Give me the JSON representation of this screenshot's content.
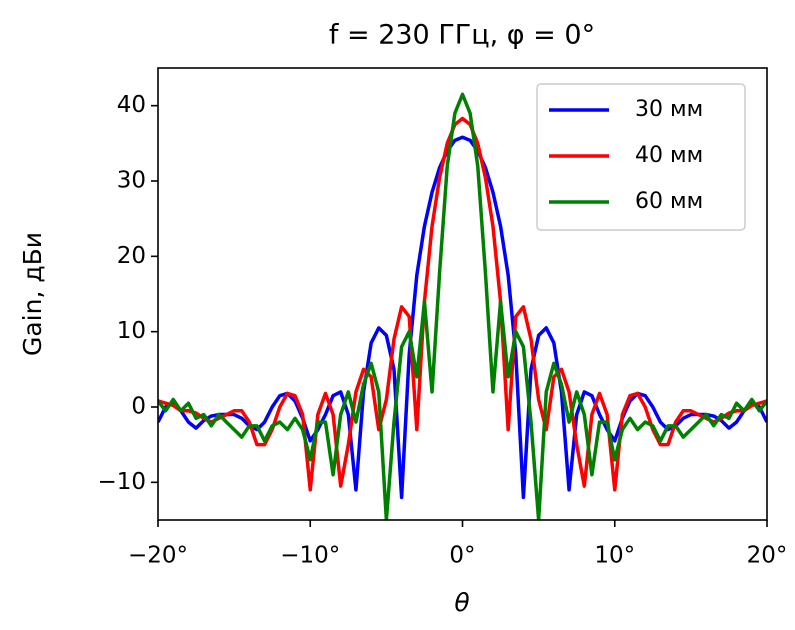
{
  "chart_data": {
    "type": "line",
    "title": "f = 230 ГГц, φ = 0°",
    "x_label": "θ",
    "y_label": "Gain, дБи",
    "x": [
      -20,
      -19.5,
      -19,
      -18.5,
      -18,
      -17.5,
      -17,
      -16.5,
      -16,
      -15.5,
      -15,
      -14.5,
      -14,
      -13.5,
      -13,
      -12.5,
      -12,
      -11.5,
      -11,
      -10.5,
      -10,
      -9.5,
      -9,
      -8.5,
      -8,
      -7.5,
      -7,
      -6.5,
      -6,
      -5.5,
      -5,
      -4.5,
      -4,
      -3.5,
      -3,
      -2.5,
      -2,
      -1.5,
      -1,
      -0.5,
      0,
      0.5,
      1,
      1.5,
      2,
      2.5,
      3,
      3.5,
      4,
      4.5,
      5,
      5.5,
      6,
      6.5,
      7,
      7.5,
      8,
      8.5,
      9,
      9.5,
      10,
      10.5,
      11,
      11.5,
      12,
      12.5,
      13,
      13.5,
      14,
      14.5,
      15,
      15.5,
      16,
      16.5,
      17,
      17.5,
      18,
      18.5,
      19,
      19.5,
      20
    ],
    "series": [
      {
        "name": "30 мм",
        "color": "#0000ff",
        "values": [
          -2,
          0,
          0.5,
          -0.5,
          -2,
          -2.8,
          -1.8,
          -1.2,
          -1,
          -1,
          -1,
          -1.5,
          -2.5,
          -3,
          -2,
          0,
          1.5,
          1.8,
          0.8,
          -1.5,
          -4.5,
          -3,
          -1,
          1.5,
          2,
          -1,
          -11,
          2,
          8.5,
          10.5,
          9.5,
          5,
          -12,
          7,
          17.5,
          24,
          28.5,
          31.8,
          34,
          35.4,
          35.8,
          35.4,
          34,
          31.8,
          28.5,
          24,
          17.5,
          7,
          -12,
          5,
          9.5,
          10.5,
          8.5,
          2,
          -11,
          -1,
          2,
          1.5,
          -1,
          -3,
          -4.5,
          -1.5,
          0.8,
          1.8,
          1.5,
          0,
          -2,
          -3,
          -2.5,
          -1.5,
          -1,
          -1,
          -1,
          -1.2,
          -1.8,
          -2.8,
          -2,
          -0.5,
          0.5,
          0,
          -2
        ]
      },
      {
        "name": "40 мм",
        "color": "#ff0000",
        "values": [
          0.8,
          0.5,
          0.2,
          -0.5,
          -0.5,
          -0.8,
          -1.5,
          -2,
          -1.5,
          -1,
          -0.5,
          -0.5,
          -2,
          -5,
          -5,
          -3,
          0,
          1.8,
          1.5,
          -1,
          -11,
          -1,
          1.8,
          -1,
          -10.5,
          -5,
          2,
          5,
          4,
          -3,
          1,
          9,
          13.3,
          12,
          -3,
          14,
          24,
          30.5,
          35,
          37.5,
          38.3,
          37.5,
          35,
          30.5,
          24,
          14,
          -3,
          12,
          13.3,
          9,
          1,
          -3,
          4,
          5,
          2,
          -5,
          -10.5,
          -1,
          1.8,
          -1,
          -11,
          -1,
          1.5,
          1.8,
          0,
          -3,
          -5,
          -5,
          -2,
          -0.5,
          -0.5,
          -1,
          -1.5,
          -2,
          -1.5,
          -0.8,
          -0.5,
          -0.5,
          0.2,
          0.5,
          0.8
        ]
      },
      {
        "name": "60 мм",
        "color": "#008000",
        "values": [
          0.8,
          -0.5,
          1,
          -0.5,
          0.5,
          -1.5,
          -1,
          -2.5,
          -1,
          -2,
          -3,
          -4,
          -2.5,
          -2.5,
          -4.5,
          -2.5,
          -2,
          -3,
          -1.5,
          -3,
          -7,
          -2,
          -2,
          -9,
          -1,
          2,
          -2,
          3,
          5.8,
          2,
          -15,
          -2,
          8,
          10,
          4,
          14,
          2,
          18,
          32,
          39,
          41.5,
          39,
          32,
          18,
          2,
          14,
          4,
          10,
          8,
          -2,
          -15,
          2,
          5.8,
          3,
          -2,
          2,
          -1,
          -9,
          -2,
          -2,
          -7,
          -3,
          -1.5,
          -3,
          -2,
          -2.5,
          -4.5,
          -2.5,
          -2.5,
          -4,
          -3,
          -2,
          -1,
          -2.5,
          -1,
          -1.5,
          0.5,
          -0.5,
          1,
          -0.5,
          0.8
        ]
      }
    ],
    "xlim": [
      -20,
      20
    ],
    "ylim": [
      -15,
      45
    ],
    "xticks": [
      {
        "value": -20,
        "label": "−20°"
      },
      {
        "value": -10,
        "label": "−10°"
      },
      {
        "value": 0,
        "label": "0°"
      },
      {
        "value": 10,
        "label": "10°"
      },
      {
        "value": 20,
        "label": "20°"
      }
    ],
    "yticks": [
      {
        "value": -10,
        "label": "−10"
      },
      0,
      10,
      20,
      30,
      40
    ],
    "legend": "upper right"
  }
}
